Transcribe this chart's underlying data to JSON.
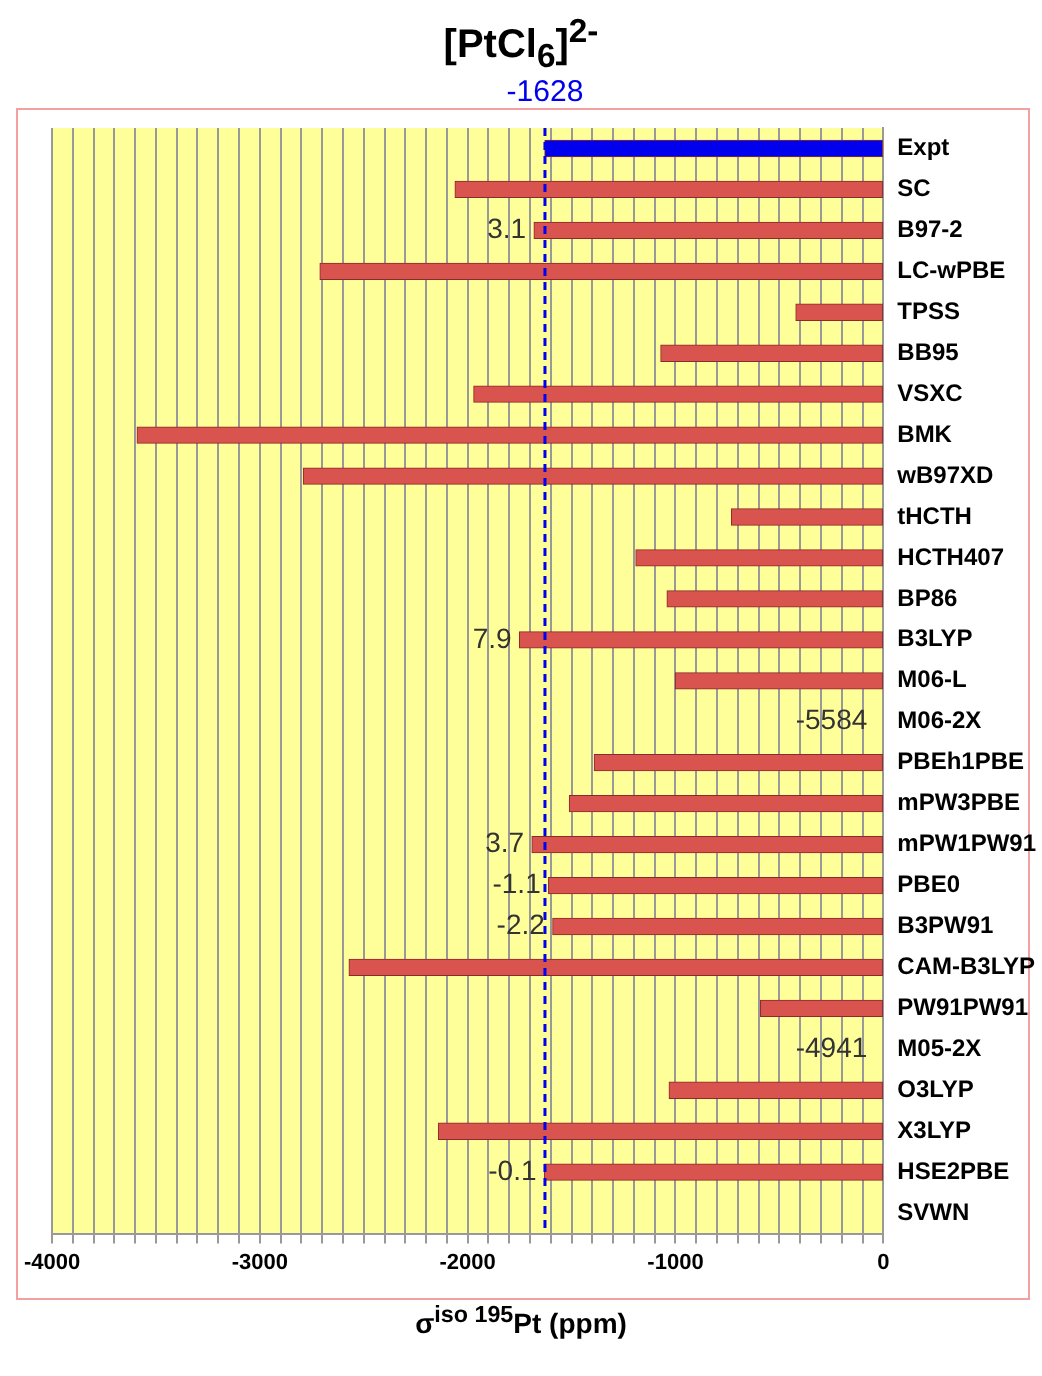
{
  "chart_data": {
    "type": "bar",
    "orientation": "horizontal",
    "title": "[PtCl$_{6}$]$^{2-}$",
    "xlabel": "σ$^{iso 195}$Pt (ppm)",
    "categories": [
      "Expt",
      "SC",
      "B97-2",
      "LC-wPBE",
      "TPSS",
      "BB95",
      "VSXC",
      "BMK",
      "wB97XD",
      "tHCTH",
      "HCTH407",
      "BP86",
      "B3LYP",
      "M06-L",
      "M06-2X",
      "PBEh1PBE",
      "mPW3PBE",
      "mPW1PW91",
      "PBE0",
      "B3PW91",
      "CAM-B3LYP",
      "PW91PW91",
      "M05-2X",
      "O3LYP",
      "X3LYP",
      "HSE2PBE",
      "SVWN"
    ],
    "values": [
      -1628,
      -2060,
      -1680,
      -2710,
      -420,
      -1070,
      -1970,
      -3590,
      -2790,
      -730,
      -1190,
      -1040,
      -1750,
      -1000,
      null,
      -1390,
      -1510,
      -1690,
      -1610,
      -1590,
      -2570,
      -590,
      null,
      -1030,
      -2140,
      -1630,
      null
    ],
    "value_labels": [
      null,
      null,
      null,
      null,
      null,
      null,
      null,
      null,
      null,
      null,
      null,
      null,
      null,
      null,
      "-5584",
      null,
      null,
      null,
      null,
      null,
      null,
      null,
      "-4941",
      null,
      null,
      null,
      null
    ],
    "annotations": [
      {
        "text": "3.1",
        "x": -1680,
        "y": "B97-2"
      },
      {
        "text": "7.9",
        "x": -1750,
        "y": "B3LYP"
      },
      {
        "text": "3.7",
        "x": -1690,
        "y": "mPW1PW91"
      },
      {
        "text": "-1.1",
        "x": -1610,
        "y": "PBE0"
      },
      {
        "text": "-2.2",
        "x": -1590,
        "y": "B3PW91"
      },
      {
        "text": "-0.1",
        "x": -1630,
        "y": "HSE2PBE"
      }
    ],
    "colors": [
      "#0000ee",
      "#d9534f",
      "#d9534f",
      "#d9534f",
      "#d9534f",
      "#d9534f",
      "#d9534f",
      "#d9534f",
      "#d9534f",
      "#d9534f",
      "#d9534f",
      "#d9534f",
      "#d9534f",
      "#d9534f",
      "#d9534f",
      "#d9534f",
      "#d9534f",
      "#d9534f",
      "#d9534f",
      "#d9534f",
      "#d9534f",
      "#d9534f",
      "#d9534f",
      "#d9534f",
      "#d9534f",
      "#d9534f",
      "#d9534f"
    ],
    "xlim": [
      -4000,
      0
    ],
    "xticks": [
      -4000,
      {
        "value": -3900,
        "label": null
      },
      {
        "value": -3800,
        "label": null
      },
      {
        "value": -3700,
        "label": null
      },
      {
        "value": -3600,
        "label": null
      },
      {
        "value": -3500,
        "label": null
      },
      {
        "value": -3400,
        "label": null
      },
      {
        "value": -3300,
        "label": null
      },
      {
        "value": -3200,
        "label": null
      },
      {
        "value": -3100,
        "label": null
      },
      -3000,
      {
        "value": -2900,
        "label": null
      },
      {
        "value": -2800,
        "label": null
      },
      {
        "value": -2700,
        "label": null
      },
      {
        "value": -2600,
        "label": null
      },
      {
        "value": -2500,
        "label": null
      },
      {
        "value": -2400,
        "label": null
      },
      {
        "value": -2300,
        "label": null
      },
      {
        "value": -2200,
        "label": null
      },
      {
        "value": -2100,
        "label": null
      },
      -2000,
      {
        "value": -1900,
        "label": null
      },
      {
        "value": -1800,
        "label": null
      },
      {
        "value": -1700,
        "label": null
      },
      {
        "value": -1600,
        "label": null
      },
      {
        "value": -1500,
        "label": null
      },
      {
        "value": -1400,
        "label": null
      },
      {
        "value": -1300,
        "label": null
      },
      {
        "value": -1200,
        "label": null
      },
      {
        "value": -1100,
        "label": null
      },
      -1000,
      {
        "value": -900,
        "label": null
      },
      {
        "value": -800,
        "label": null
      },
      {
        "value": -700,
        "label": null
      },
      {
        "value": -600,
        "label": null
      },
      {
        "value": -500,
        "label": null
      },
      {
        "value": -400,
        "label": null
      },
      {
        "value": -300,
        "label": null
      },
      {
        "value": -200,
        "label": null
      },
      {
        "value": -100,
        "label": null
      },
      0
    ],
    "ref_lines": [
      {
        "axis": "x",
        "value": -1628,
        "label": "-1628",
        "color": "#0000ee",
        "line_style": "dashed"
      }
    ],
    "grid": "x",
    "legend": false
  }
}
